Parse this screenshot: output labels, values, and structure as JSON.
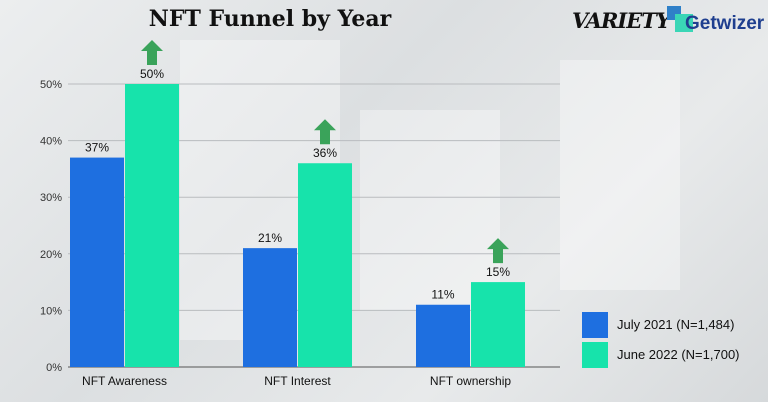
{
  "header": {
    "title": "NFT Funnel by Year"
  },
  "logos": {
    "variety": "VARIETY",
    "getwizer": "Getwizer"
  },
  "colors": {
    "series1": "#1e6fe0",
    "series2": "#17e3ab",
    "arrow": "#3aa35a"
  },
  "chart_data": {
    "type": "bar",
    "title": "NFT Funnel by Year",
    "categories": [
      "NFT Awareness",
      "NFT Interest",
      "NFT ownership"
    ],
    "series": [
      {
        "name": "July 2021 (N=1,484)",
        "values": [
          37,
          21,
          11
        ],
        "labels": [
          "37%",
          "21%",
          "11%"
        ]
      },
      {
        "name": "June 2022 (N=1,700)",
        "values": [
          50,
          36,
          15
        ],
        "labels": [
          "50%",
          "36%",
          "15%"
        ]
      }
    ],
    "yticks": [
      "0%",
      "10%",
      "20%",
      "30%",
      "40%",
      "50%"
    ],
    "ylim": [
      0,
      50
    ],
    "grid": true,
    "legend": "bottom-right",
    "annotations": "up-arrow above each June 2022 bar"
  }
}
